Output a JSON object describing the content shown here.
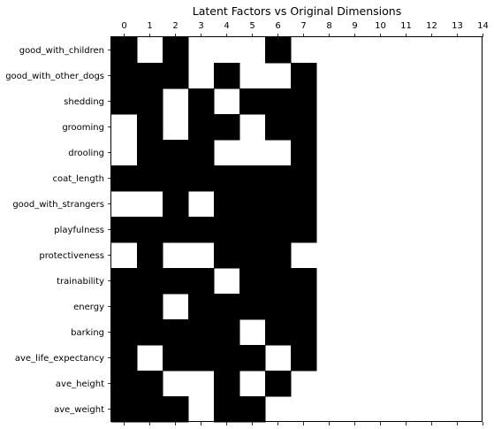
{
  "chart_data": {
    "type": "heatmap",
    "title": "Latent Factors vs Original Dimensions",
    "xlabel": "",
    "ylabel": "",
    "x_ticks": [
      "0",
      "1",
      "2",
      "3",
      "4",
      "5",
      "6",
      "7",
      "8",
      "9",
      "10",
      "11",
      "12",
      "13",
      "14"
    ],
    "x_tick_position": "top",
    "rows": [
      "good_with_children",
      "good_with_other_dogs",
      "shedding",
      "grooming",
      "drooling",
      "coat_length",
      "good_with_strangers",
      "playfulness",
      "protectiveness",
      "trainability",
      "energy",
      "barking",
      "ave_life_expectancy",
      "ave_height",
      "ave_weight"
    ],
    "cells_note_values": "1 = black, 0 = white; columns 8-14 empty (white)",
    "matrix": [
      [
        1,
        0,
        1,
        0,
        0,
        0,
        1,
        0,
        0,
        0,
        0,
        0,
        0,
        0,
        0
      ],
      [
        1,
        1,
        1,
        0,
        1,
        0,
        0,
        1,
        0,
        0,
        0,
        0,
        0,
        0,
        0
      ],
      [
        1,
        1,
        0,
        1,
        0,
        1,
        1,
        1,
        0,
        0,
        0,
        0,
        0,
        0,
        0
      ],
      [
        0,
        1,
        0,
        1,
        1,
        0,
        1,
        1,
        0,
        0,
        0,
        0,
        0,
        0,
        0
      ],
      [
        0,
        1,
        1,
        1,
        0,
        0,
        0,
        1,
        0,
        0,
        0,
        0,
        0,
        0,
        0
      ],
      [
        1,
        1,
        1,
        1,
        1,
        1,
        1,
        1,
        0,
        0,
        0,
        0,
        0,
        0,
        0
      ],
      [
        0,
        0,
        1,
        0,
        1,
        1,
        1,
        1,
        0,
        0,
        0,
        0,
        0,
        0,
        0
      ],
      [
        1,
        1,
        1,
        1,
        1,
        1,
        1,
        1,
        0,
        0,
        0,
        0,
        0,
        0,
        0
      ],
      [
        0,
        1,
        0,
        0,
        1,
        1,
        1,
        0,
        0,
        0,
        0,
        0,
        0,
        0,
        0
      ],
      [
        1,
        1,
        1,
        1,
        0,
        1,
        1,
        1,
        0,
        0,
        0,
        0,
        0,
        0,
        0
      ],
      [
        1,
        1,
        0,
        1,
        1,
        1,
        1,
        1,
        0,
        0,
        0,
        0,
        0,
        0,
        0
      ],
      [
        1,
        1,
        1,
        1,
        1,
        0,
        1,
        1,
        0,
        0,
        0,
        0,
        0,
        0,
        0
      ],
      [
        1,
        0,
        1,
        1,
        1,
        1,
        0,
        1,
        0,
        0,
        0,
        0,
        0,
        0,
        0
      ],
      [
        1,
        1,
        0,
        0,
        1,
        0,
        1,
        0,
        0,
        0,
        0,
        0,
        0,
        0,
        0
      ],
      [
        1,
        1,
        1,
        0,
        1,
        1,
        0,
        0,
        0,
        0,
        0,
        0,
        0,
        0,
        0
      ]
    ],
    "colors": {
      "on": "#000000",
      "off": "#ffffff"
    },
    "grid": false,
    "legend": "none"
  }
}
